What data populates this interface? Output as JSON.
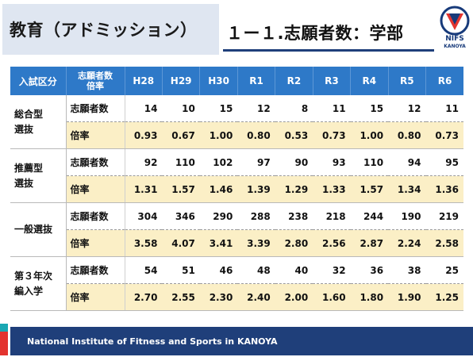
{
  "header": {
    "title": "教育（アドミッション）",
    "subtitle": "１ー１.志願者数：学部",
    "logo_text": "NIFS",
    "logo_subtext": "KANOYA",
    "logo_ring_text": "KANOYA"
  },
  "table": {
    "headers": {
      "category": "入試区分",
      "type_line1": "志願者数",
      "type_line2": "倍率",
      "years": [
        "H28",
        "H29",
        "H30",
        "R1",
        "R2",
        "R3",
        "R4",
        "R5",
        "R6"
      ]
    },
    "groups": [
      {
        "name_line1": "総合型",
        "name_line2": "選抜",
        "count_label": "志願者数",
        "rate_label": "倍率",
        "counts": [
          "14",
          "10",
          "15",
          "12",
          "8",
          "11",
          "15",
          "12",
          "11"
        ],
        "rates": [
          "0.93",
          "0.67",
          "1.00",
          "0.80",
          "0.53",
          "0.73",
          "1.00",
          "0.80",
          "0.73"
        ]
      },
      {
        "name_line1": "推薦型",
        "name_line2": "選抜",
        "count_label": "志願者数",
        "rate_label": "倍率",
        "counts": [
          "92",
          "110",
          "102",
          "97",
          "90",
          "93",
          "110",
          "94",
          "95"
        ],
        "rates": [
          "1.31",
          "1.57",
          "1.46",
          "1.39",
          "1.29",
          "1.33",
          "1.57",
          "1.34",
          "1.36"
        ]
      },
      {
        "name_line1": "一般選抜",
        "name_line2": "",
        "count_label": "志願者数",
        "rate_label": "倍率",
        "counts": [
          "304",
          "346",
          "290",
          "288",
          "238",
          "218",
          "244",
          "190",
          "219"
        ],
        "rates": [
          "3.58",
          "4.07",
          "3.41",
          "3.39",
          "2.80",
          "2.56",
          "2.87",
          "2.24",
          "2.58"
        ]
      },
      {
        "name_line1": "第３年次",
        "name_line2": "編入学",
        "count_label": "志願者数",
        "rate_label": "倍率",
        "counts": [
          "54",
          "51",
          "46",
          "48",
          "40",
          "32",
          "36",
          "38",
          "25"
        ],
        "rates": [
          "2.70",
          "2.55",
          "2.30",
          "2.40",
          "2.00",
          "1.60",
          "1.80",
          "1.90",
          "1.25"
        ]
      }
    ]
  },
  "footer": {
    "text": "National Institute of Fitness and Sports in KANOYA"
  },
  "colors": {
    "header_blue": "#2e79c8",
    "rate_row": "#fbefc6",
    "footer_navy": "#1f3f7a",
    "accent_red": "#e3342f",
    "accent_teal": "#1aa8b3"
  }
}
